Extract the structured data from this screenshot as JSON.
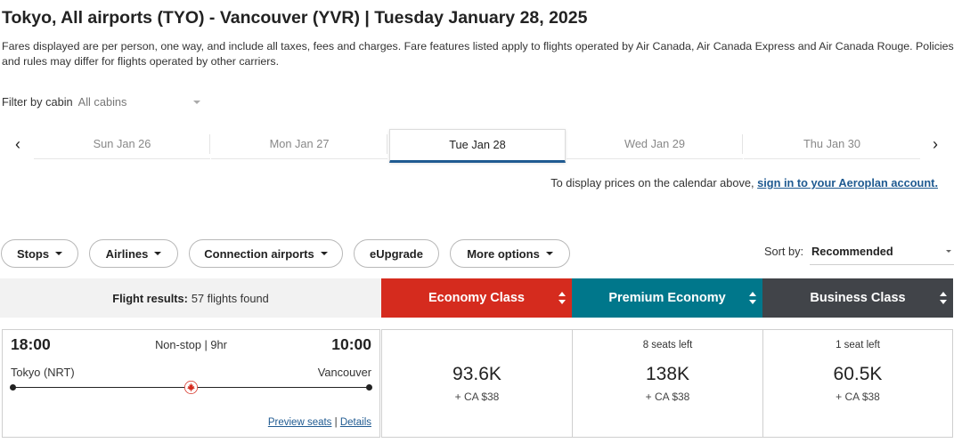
{
  "header": {
    "title": "Tokyo, All airports (TYO) - Vancouver (YVR)  |  Tuesday January 28, 2025",
    "disclaimer": "Fares displayed are per person, one way, and include all taxes, fees and charges. Fare features listed apply to flights operated by Air Canada, Air Canada Express and Air Canada Rouge. Policies and rules may differ for flights operated by other carriers."
  },
  "cabin_filter": {
    "label": "Filter by cabin",
    "value": "All cabins"
  },
  "date_strip": {
    "prev_icon": "chevron-left-icon",
    "next_icon": "chevron-right-icon",
    "prev_glyph": "‹",
    "next_glyph": "›",
    "dates": [
      "Sun Jan 26",
      "Mon Jan 27",
      "Tue Jan 28",
      "Wed Jan 29",
      "Thu Jan 30"
    ],
    "selected": "Tue Jan 28"
  },
  "signin": {
    "text": "To display prices on the calendar above, ",
    "link": "sign in to your Aeroplan account."
  },
  "filters": {
    "stops": "Stops",
    "airlines": "Airlines",
    "connection_airports": "Connection airports",
    "eupgrade": "eUpgrade",
    "more_options": "More options"
  },
  "sort": {
    "label": "Sort by:",
    "value": "Recommended"
  },
  "results": {
    "label": "Flight results:",
    "count": "57 flights found"
  },
  "cabins": {
    "economy": {
      "label": "Economy Class",
      "color": "#d52b1e"
    },
    "premium": {
      "label": "Premium Economy",
      "color": "#00778b"
    },
    "business": {
      "label": "Business Class",
      "color": "#414449"
    }
  },
  "flight": {
    "departure_time": "18:00",
    "arrival_time": "10:00",
    "info": "Non-stop | 9hr",
    "origin": "Tokyo (NRT)",
    "destination": "Vancouver",
    "preview_seats": "Preview seats",
    "separator": "|",
    "details": "Details",
    "airline_icon": "maple-leaf-icon",
    "fares": {
      "economy": {
        "seats": "",
        "points": "93.6K",
        "fee": "+ CA $38"
      },
      "premium": {
        "seats": "8 seats left",
        "points": "138K",
        "fee": "+ CA $38"
      },
      "business": {
        "seats": "1 seat left",
        "points": "60.5K",
        "fee": "+ CA $38"
      }
    }
  }
}
